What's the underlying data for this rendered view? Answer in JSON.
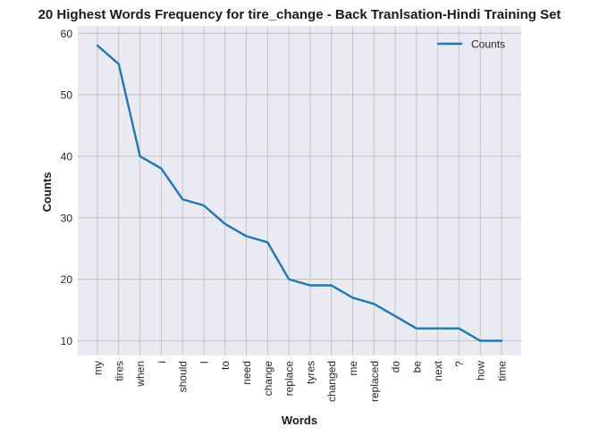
{
  "chart_data": {
    "type": "line",
    "title": "20 Highest Words Frequency for tire_change - Back Tranlsation-Hindi Training Set",
    "xlabel": "Words",
    "ylabel": "Counts",
    "categories": [
      "my",
      "tires",
      "when",
      "i",
      "should",
      "I",
      "to",
      "need",
      "change",
      "replace",
      "tyres",
      "changed",
      "me",
      "replaced",
      "do",
      "be",
      "next",
      "?",
      "how",
      "time"
    ],
    "series": [
      {
        "name": "Counts",
        "values": [
          58,
          55,
          40,
          38,
          33,
          32,
          29,
          27,
          26,
          20,
          19,
          19,
          17,
          16,
          14,
          12,
          12,
          12,
          10,
          10
        ],
        "color": "#1f77b4"
      }
    ],
    "ylim": [
      7.6,
      61.2
    ],
    "yticks": [
      10,
      20,
      30,
      40,
      50,
      60
    ],
    "grid": true,
    "legend_position": "top-right",
    "plot_background": "#eaeaf2",
    "grid_color": "#c0c0c0"
  }
}
